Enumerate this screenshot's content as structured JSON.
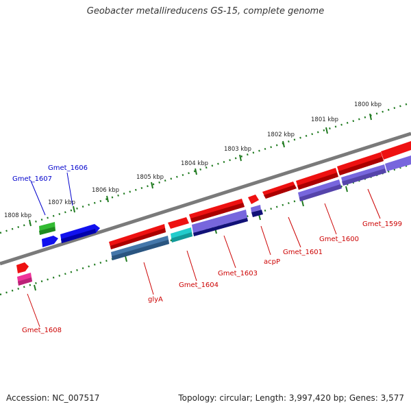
{
  "title": "Geobacter metallireducens GS-15, complete genome",
  "footer": {
    "accession": "Accession: NC_007517",
    "summary": "Topology: circular; Length: 3,997,420 bp; Genes: 3,577"
  },
  "kbp_labels": [
    "1808 kbp",
    "1807 kbp",
    "1806 kbp",
    "1805 kbp",
    "1804 kbp",
    "1803 kbp",
    "1802 kbp",
    "1801 kbp",
    "1800 kbp"
  ],
  "colors": {
    "backbone": "#7a7a7a",
    "ruler": "#1f7a1f",
    "forward_label": "#0000cc",
    "reverse_label": "#cc0000",
    "red_gene": "#ee1111",
    "blue_gene": "#1111ee",
    "green_gene": "#33bb33",
    "purple_feature": "#7766dd",
    "steel_feature": "#4477aa",
    "cyan_feature": "#22cccc",
    "navy_feature": "#111177",
    "pink_gene": "#ee3399"
  },
  "gene_labels": {
    "forward": [
      "Gmet_1607",
      "Gmet_1606"
    ],
    "reverse": [
      "Gmet_1608",
      "glyA",
      "Gmet_1604",
      "Gmet_1603",
      "acpP",
      "Gmet_1601",
      "Gmet_1600",
      "Gmet_1599"
    ]
  }
}
